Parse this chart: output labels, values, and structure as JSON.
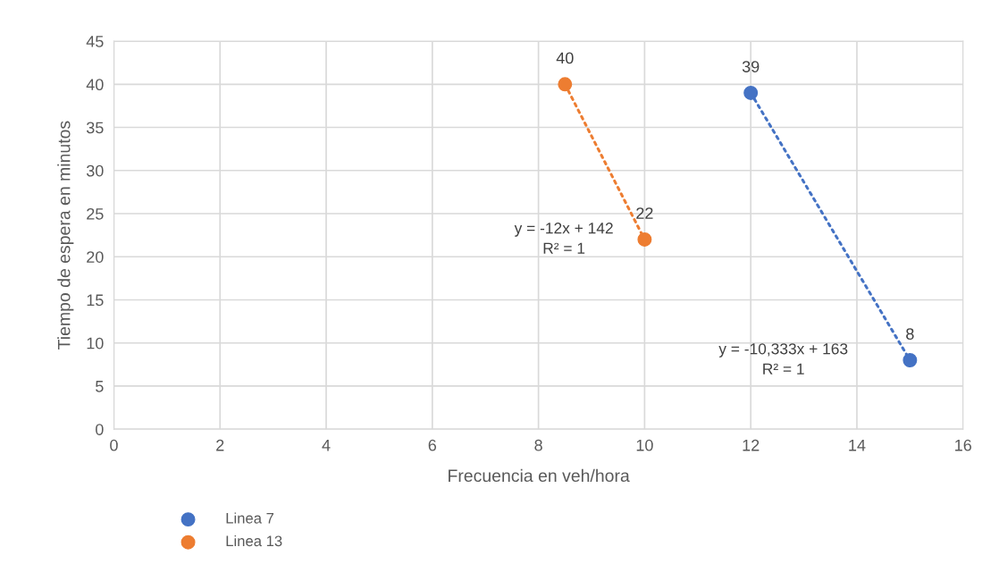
{
  "chart_data": {
    "type": "scatter",
    "xlabel": "Frecuencia en veh/hora",
    "ylabel": "Tiempo de espera en minutos",
    "xlim": [
      0,
      16
    ],
    "xticks": [
      0,
      2,
      4,
      6,
      8,
      10,
      12,
      14,
      16
    ],
    "ylim": [
      0,
      45
    ],
    "yticks": [
      0,
      5,
      10,
      15,
      20,
      25,
      30,
      35,
      40,
      45
    ],
    "grid": true,
    "legend": "bottom left",
    "marker": "circle",
    "series": [
      {
        "name": "Linea 7",
        "color": "#4472c4",
        "x": [
          12,
          15
        ],
        "values": [
          39,
          8
        ],
        "value_labels": [
          "39",
          "8"
        ]
      },
      {
        "name": "Linea 13",
        "color": "#ed7d31",
        "x": [
          8.5,
          10
        ],
        "values": [
          40,
          22
        ],
        "value_labels": [
          "40",
          "22"
        ]
      },
      {
        "type": "line",
        "color": "#4472c4",
        "x": [
          12,
          15
        ],
        "values": [
          39,
          8
        ],
        "line_style": "dotted",
        "marker": "none"
      },
      {
        "type": "line",
        "color": "#ed7d31",
        "x": [
          8.5,
          10
        ],
        "values": [
          40,
          22
        ],
        "line_style": "dotted",
        "marker": "none"
      }
    ],
    "annotations": [
      "y = -10,333x + 163\nR² = 1",
      "y = -12x + 142\nR² = 1"
    ]
  }
}
